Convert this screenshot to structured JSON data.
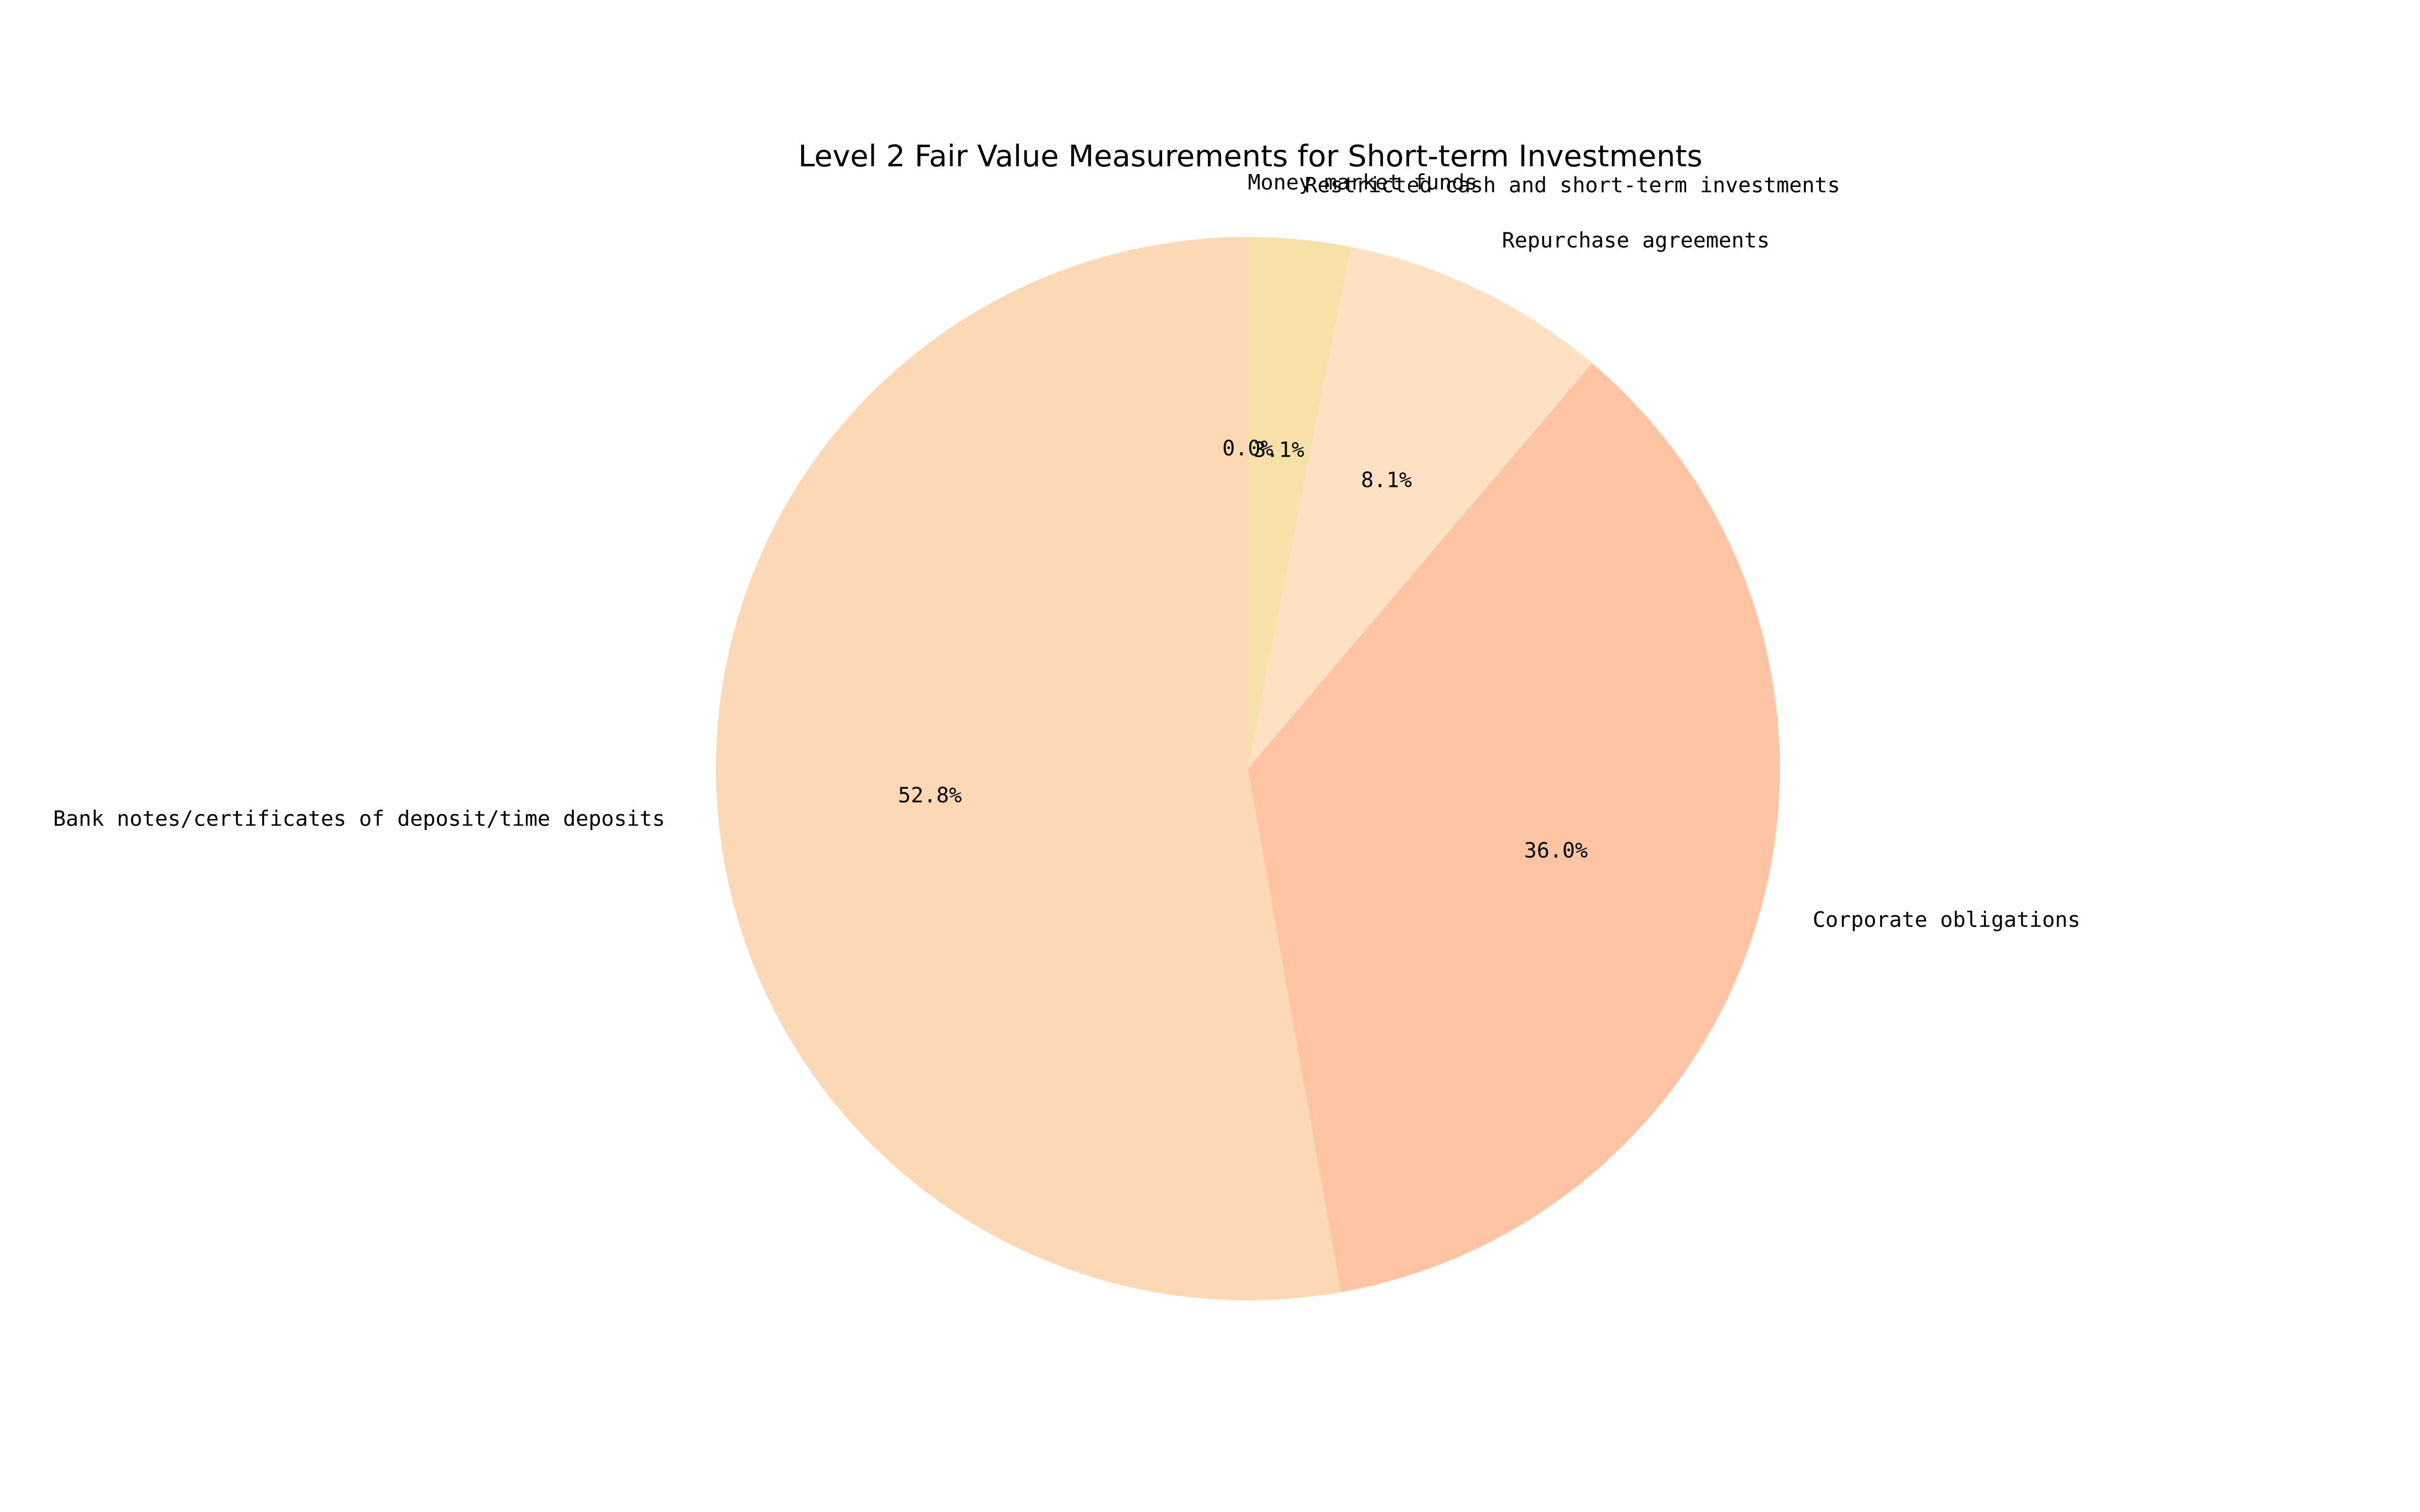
{
  "chart_data": {
    "type": "pie",
    "title": "Level 2 Fair Value Measurements for Short-term Investments",
    "start_angle_deg": 90,
    "direction": "clockwise",
    "slices": [
      {
        "label": "Money market funds",
        "value": 0.0,
        "pct_label": "0.0%",
        "color": "#fdd9b5"
      },
      {
        "label": "Restricted cash and short-term investments",
        "value": 3.1,
        "pct_label": "3.1%",
        "color": "#f8e1a8"
      },
      {
        "label": "Repurchase agreements",
        "value": 8.1,
        "pct_label": "8.1%",
        "color": "#fee0c2"
      },
      {
        "label": "Corporate obligations",
        "value": 36.0,
        "pct_label": "36.0%",
        "color": "#fec4a4"
      },
      {
        "label": "Bank notes/certificates of deposit/time deposits",
        "value": 52.8,
        "pct_label": "52.8%",
        "color": "#fdd8b5"
      }
    ]
  }
}
